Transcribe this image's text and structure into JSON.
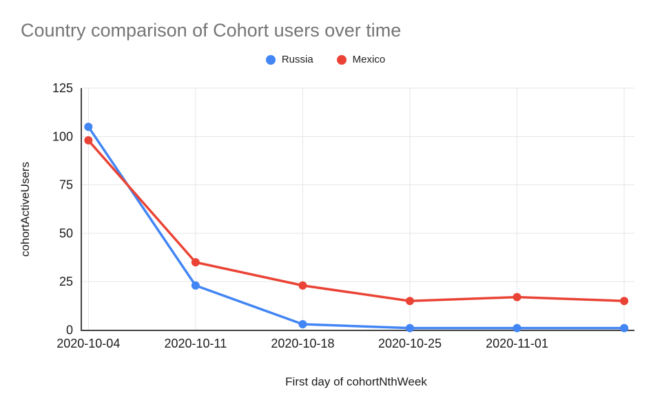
{
  "page": {
    "background": "#ffffff"
  },
  "header": {
    "title": "Country comparison of Cohort users over time",
    "title_color": "#757575"
  },
  "chart_data": {
    "type": "line",
    "title": "Country comparison of Cohort users over time",
    "xlabel": "First day of cohortNthWeek",
    "ylabel": "cohortActiveUsers",
    "categories": [
      "2020-10-04",
      "2020-10-11",
      "2020-10-18",
      "2020-10-25",
      "2020-11-01",
      ""
    ],
    "series": [
      {
        "name": "Russia",
        "color": "#4285F4",
        "values": [
          105,
          23,
          3,
          1,
          1,
          1
        ]
      },
      {
        "name": "Mexico",
        "color": "#EA4335",
        "values": [
          98,
          35,
          23,
          15,
          17,
          15
        ]
      }
    ],
    "ylim": [
      0,
      125
    ],
    "yticks": [
      0,
      25,
      50,
      75,
      100,
      125
    ],
    "grid": true,
    "legend_position": "top-center",
    "marker": "circle",
    "colors": {
      "grid": "#e6e6e6",
      "axis": "#424242",
      "tick_label": "#1a1a1a",
      "axis_title": "#1a1a1a"
    }
  }
}
